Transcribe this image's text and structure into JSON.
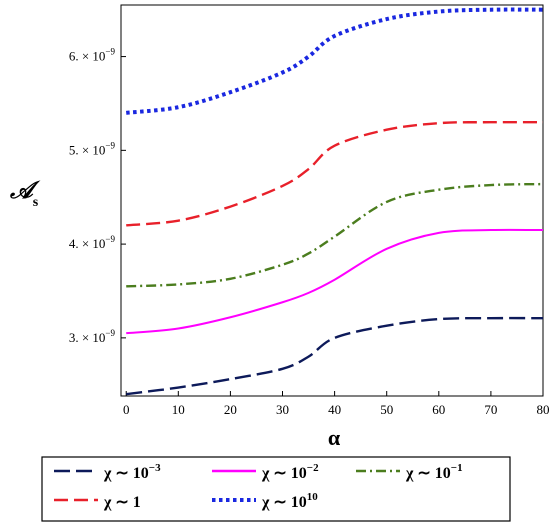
{
  "chart_data": {
    "type": "line",
    "title": "",
    "xlabel": "α",
    "ylabel": "𝒜",
    "ylabel_sub": "s",
    "xlim": [
      -1,
      80
    ],
    "ylim": [
      2.38e-09,
      6.55e-09
    ],
    "x_ticks": [
      0,
      10,
      20,
      30,
      40,
      50,
      60,
      70,
      80
    ],
    "y_ticks": [
      {
        "value": 3e-09,
        "mantissa": "3.",
        "base": "× 10",
        "exp": "−9"
      },
      {
        "value": 4e-09,
        "mantissa": "4.",
        "base": "× 10",
        "exp": "−9"
      },
      {
        "value": 5e-09,
        "mantissa": "5.",
        "base": "× 10",
        "exp": "−9"
      },
      {
        "value": 6e-09,
        "mantissa": "6.",
        "base": "× 10",
        "exp": "−9"
      }
    ],
    "grid": false,
    "legend_position": "bottom",
    "x": [
      0,
      10,
      20,
      30,
      35,
      40,
      50,
      60,
      70,
      80
    ],
    "series": [
      {
        "name_base": "χ ∼ 10",
        "name_exp": "−3",
        "color": "#0d1a5a",
        "dash": "long-dash",
        "values": [
          2.4e-09,
          2.47e-09,
          2.56e-09,
          2.67e-09,
          2.8e-09,
          3e-09,
          3.13e-09,
          3.2e-09,
          3.21e-09,
          3.21e-09
        ]
      },
      {
        "name_base": "χ ∼ 10",
        "name_exp": "−2",
        "color": "#ff00ff",
        "dash": "solid",
        "values": [
          3.05e-09,
          3.1e-09,
          3.22e-09,
          3.38e-09,
          3.48e-09,
          3.62e-09,
          3.95e-09,
          4.12e-09,
          4.15e-09,
          4.15e-09
        ]
      },
      {
        "name_base": "χ ∼ 10",
        "name_exp": "−1",
        "color": "#4b7d1e",
        "dash": "dash-dot",
        "values": [
          3.55e-09,
          3.57e-09,
          3.63e-09,
          3.78e-09,
          3.9e-09,
          4.08e-09,
          4.45e-09,
          4.58e-09,
          4.63e-09,
          4.64e-09
        ]
      },
      {
        "name_base": "χ ∼ 1",
        "name_exp": "",
        "color": "#e8202a",
        "dash": "dash",
        "values": [
          4.2e-09,
          4.25e-09,
          4.4e-09,
          4.62e-09,
          4.8e-09,
          5.05e-09,
          5.22e-09,
          5.29e-09,
          5.3e-09,
          5.3e-09
        ]
      },
      {
        "name_base": "χ ∼ 10",
        "name_exp": "10",
        "color": "#1a28e0",
        "dash": "dot",
        "values": [
          5.4e-09,
          5.46e-09,
          5.62e-09,
          5.83e-09,
          6e-09,
          6.22e-09,
          6.4e-09,
          6.48e-09,
          6.5e-09,
          6.5e-09
        ]
      }
    ],
    "legend_order": [
      0,
      1,
      2,
      3,
      4
    ]
  }
}
